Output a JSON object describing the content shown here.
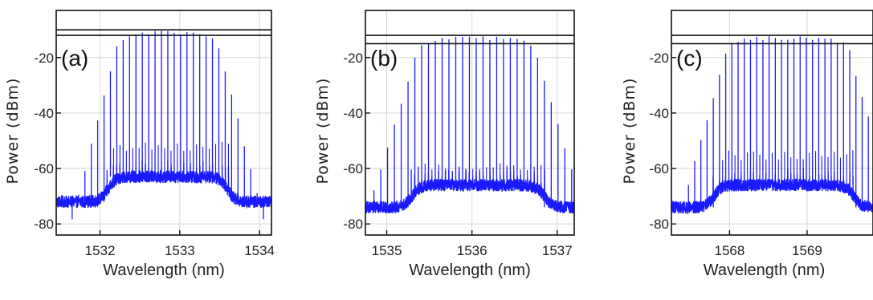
{
  "colors": {
    "trace": "#1a1aff",
    "axis": "#111111",
    "grid": "#d6d6d6"
  },
  "chart_data": [
    {
      "type": "line",
      "panel_label": "(a)",
      "xlabel": "Wavelength (nm)",
      "ylabel": "Power (dBm)",
      "xlim": [
        1531.45,
        1534.15
      ],
      "ylim": [
        -84,
        -3
      ],
      "xticks": [
        1532,
        1533,
        1534
      ],
      "yticks": [
        -20,
        -40,
        -60,
        -80
      ],
      "grid": true,
      "reference_lines_dbm": [
        -10,
        -12
      ],
      "comb": {
        "center": 1532.85,
        "spacing": 0.08,
        "half_width": 0.62,
        "peak": -11,
        "edge_decay": 0.2
      },
      "floor": {
        "base": -72,
        "raised": -63,
        "x_start": 1532.1,
        "x_end": 1533.6,
        "sub_peak": -52
      }
    },
    {
      "type": "line",
      "panel_label": "(b)",
      "xlabel": "Wavelength (nm)",
      "ylabel": "Power (dBm)",
      "xlim": [
        1534.75,
        1537.2
      ],
      "ylim": [
        -84,
        -3
      ],
      "xticks": [
        1535,
        1536,
        1537
      ],
      "yticks": [
        -20,
        -40,
        -60,
        -80
      ],
      "grid": true,
      "reference_lines_dbm": [
        -12,
        -15
      ],
      "comb": {
        "center": 1536.05,
        "spacing": 0.08,
        "half_width": 0.68,
        "peak": -13,
        "edge_decay": 0.22
      },
      "floor": {
        "base": -74,
        "raised": -66,
        "x_start": 1535.3,
        "x_end": 1536.85,
        "sub_peak": -60
      }
    },
    {
      "type": "line",
      "panel_label": "(c)",
      "xlabel": "Wavelength (nm)",
      "ylabel": "Power (dBm)",
      "xlim": [
        1567.25,
        1569.85
      ],
      "ylim": [
        -84,
        -3
      ],
      "xticks": [
        1568,
        1569
      ],
      "yticks": [
        -20,
        -40,
        -60,
        -80
      ],
      "grid": true,
      "reference_lines_dbm": [
        -12,
        -15
      ],
      "comb": {
        "center": 1568.75,
        "spacing": 0.08,
        "half_width": 0.78,
        "peak": -13,
        "edge_decay": 0.22
      },
      "floor": {
        "base": -74,
        "raised": -66,
        "x_start": 1567.8,
        "x_end": 1569.6,
        "sub_peak": -55
      }
    }
  ]
}
